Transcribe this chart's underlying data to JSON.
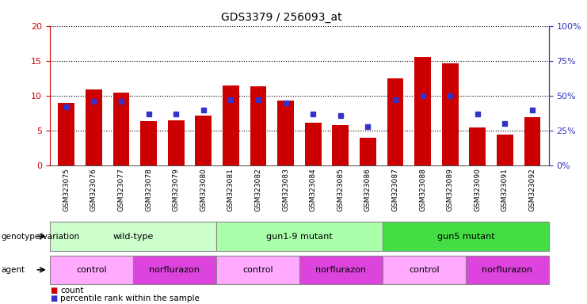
{
  "title": "GDS3379 / 256093_at",
  "samples": [
    "GSM323075",
    "GSM323076",
    "GSM323077",
    "GSM323078",
    "GSM323079",
    "GSM323080",
    "GSM323081",
    "GSM323082",
    "GSM323083",
    "GSM323084",
    "GSM323085",
    "GSM323086",
    "GSM323087",
    "GSM323088",
    "GSM323089",
    "GSM323090",
    "GSM323091",
    "GSM323092"
  ],
  "counts": [
    9.0,
    10.9,
    10.5,
    6.4,
    6.5,
    7.2,
    11.5,
    11.4,
    9.3,
    6.1,
    5.8,
    4.0,
    12.5,
    15.5,
    14.6,
    5.5,
    4.4,
    6.9
  ],
  "percentiles": [
    42,
    46,
    46,
    37,
    37,
    40,
    47,
    47,
    45,
    37,
    36,
    28,
    47,
    50,
    50,
    37,
    30,
    40
  ],
  "ylim_left": [
    0,
    20
  ],
  "ylim_right": [
    0,
    100
  ],
  "yticks_left": [
    0,
    5,
    10,
    15,
    20
  ],
  "yticks_right": [
    0,
    25,
    50,
    75,
    100
  ],
  "bar_color": "#CC0000",
  "dot_color": "#3333CC",
  "chart_bg": "#FFFFFF",
  "xtick_bg": "#D0D0D0",
  "left_axis_color": "#CC0000",
  "right_axis_color": "#3333BB",
  "genotype_groups": [
    {
      "label": "wild-type",
      "start": 0,
      "end": 6,
      "color": "#CCFFCC"
    },
    {
      "label": "gun1-9 mutant",
      "start": 6,
      "end": 12,
      "color": "#AAFFAA"
    },
    {
      "label": "gun5 mutant",
      "start": 12,
      "end": 18,
      "color": "#44DD44"
    }
  ],
  "agent_groups": [
    {
      "label": "control",
      "start": 0,
      "end": 3,
      "color": "#FFAAFF"
    },
    {
      "label": "norflurazon",
      "start": 3,
      "end": 6,
      "color": "#DD44DD"
    },
    {
      "label": "control",
      "start": 6,
      "end": 9,
      "color": "#FFAAFF"
    },
    {
      "label": "norflurazon",
      "start": 9,
      "end": 12,
      "color": "#DD44DD"
    },
    {
      "label": "control",
      "start": 12,
      "end": 15,
      "color": "#FFAAFF"
    },
    {
      "label": "norflurazon",
      "start": 15,
      "end": 18,
      "color": "#DD44DD"
    }
  ]
}
